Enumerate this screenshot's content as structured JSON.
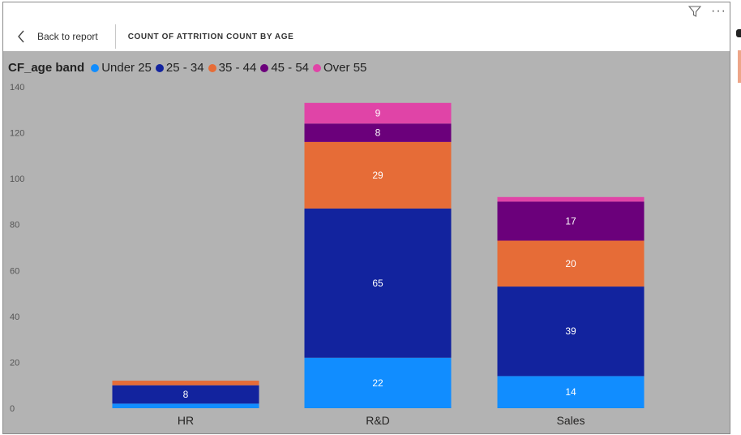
{
  "header": {
    "back_label": "Back to report",
    "visual_title": "COUNT OF ATTRITION COUNT BY AGE"
  },
  "icons": {
    "back": "chevron-left-icon",
    "filter": "filter-icon",
    "more": "more-options-icon"
  },
  "legend": {
    "title": "CF_age band"
  },
  "colors": {
    "Under 25": "#118DFF",
    "25 - 34": "#12239E",
    "35 - 44": "#E66C37",
    "45 - 54": "#6B007B",
    "Over 55": "#E044A7",
    "background": "#B3B3B3"
  },
  "chart_data": {
    "type": "bar",
    "stacked": true,
    "title": "COUNT OF ATTRITION COUNT BY AGE",
    "legend_title": "CF_age band",
    "legend_position": "top-left",
    "categories": [
      "HR",
      "R&D",
      "Sales"
    ],
    "series": [
      {
        "name": "Under 25",
        "values": [
          2,
          22,
          14
        ]
      },
      {
        "name": "25 - 34",
        "values": [
          8,
          65,
          39
        ]
      },
      {
        "name": "35 - 44",
        "values": [
          2,
          29,
          20
        ]
      },
      {
        "name": "45 - 54",
        "values": [
          0,
          8,
          17
        ]
      },
      {
        "name": "Over 55",
        "values": [
          0,
          9,
          2
        ]
      }
    ],
    "data_labels": {
      "HR": {
        "25 - 34": "8"
      },
      "R&D": {
        "Under 25": "22",
        "25 - 34": "65",
        "35 - 44": "29",
        "45 - 54": "8",
        "Over 55": "9"
      },
      "Sales": {
        "Under 25": "14",
        "25 - 34": "39",
        "35 - 44": "20",
        "45 - 54": "17"
      }
    },
    "ylim": [
      0,
      140
    ],
    "yticks": [
      0,
      20,
      40,
      60,
      80,
      100,
      120,
      140
    ],
    "xlabel": "",
    "ylabel": "",
    "grid": false
  }
}
